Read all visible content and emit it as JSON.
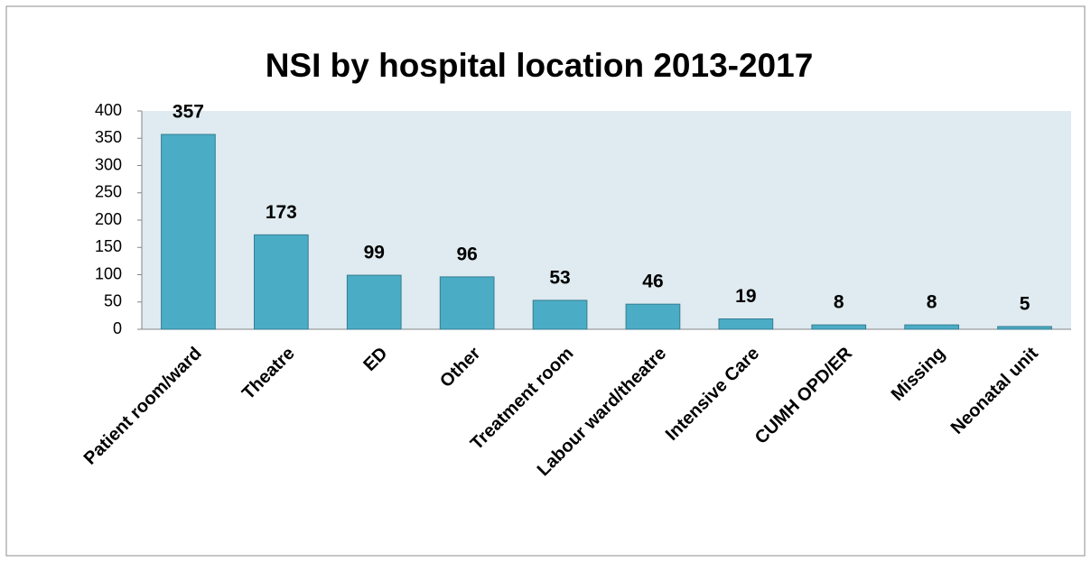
{
  "chart_data": {
    "type": "bar",
    "title": "NSI by hospital location 2013-2017",
    "categories": [
      "Patient room/ward",
      "Theatre",
      "ED",
      "Other",
      "Treatment room",
      "Labour ward/theatre",
      "Intensive Care",
      "CUMH OPD/ER",
      "Missing",
      "Neonatal unit"
    ],
    "values": [
      357,
      173,
      99,
      96,
      53,
      46,
      19,
      8,
      8,
      5
    ],
    "color": "#4bacc6",
    "ylim": [
      0,
      400
    ],
    "yticks": [
      0,
      50,
      100,
      150,
      200,
      250,
      300,
      350,
      400
    ],
    "grid": false
  }
}
